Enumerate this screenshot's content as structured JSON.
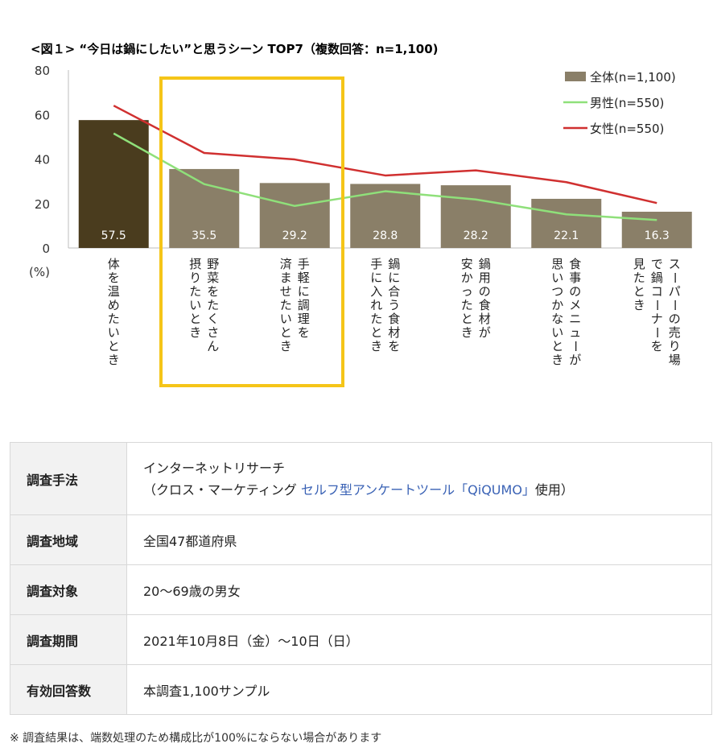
{
  "chart_data": {
    "type": "bar",
    "title": "<図１> “今日は鍋にしたい”と思うシーン TOP7（複数回答：n=1,100)",
    "unit_label": "(%)",
    "ylim": [
      0,
      80
    ],
    "yticks": [
      "0",
      "20",
      "40",
      "60",
      "80"
    ],
    "categories": [
      [
        "体を温めたいとき"
      ],
      [
        "野菜をたくさん",
        "摂りたいとき"
      ],
      [
        "手軽に調理を",
        "済ませたいとき"
      ],
      [
        "鍋に合う食材を",
        "手に入れたとき"
      ],
      [
        "鍋用の食材が",
        "安かったとき"
      ],
      [
        "食事のメニューが",
        "思いつかないとき"
      ],
      [
        "スーパーの売り場",
        "で鍋コーナーを",
        "見たとき"
      ]
    ],
    "series": [
      {
        "name": "全体(n=1,100)",
        "kind": "bar",
        "values": [
          57.5,
          35.5,
          29.2,
          28.8,
          28.2,
          22.1,
          16.3
        ],
        "color": "#8a7f68",
        "highlight_color": "#4a3c1e"
      },
      {
        "name": "男性(n=550)",
        "kind": "line",
        "values": [
          51.5,
          28.7,
          18.9,
          25.5,
          21.8,
          15.1,
          12.6
        ],
        "color": "#8fe07a"
      },
      {
        "name": "女性(n=550)",
        "kind": "line",
        "values": [
          64.0,
          42.7,
          39.8,
          32.6,
          34.9,
          29.6,
          20.2
        ],
        "color": "#d03030"
      }
    ],
    "data_labels": [
      "57.5",
      "35.5",
      "29.2",
      "28.8",
      "28.2",
      "22.1",
      "16.3"
    ],
    "highlight_box_color": "#f5c518",
    "legend_position": "top-right",
    "grid": false
  },
  "table": {
    "rows": [
      {
        "key": "調査手法",
        "line1": "インターネットリサーチ",
        "line2_prefix": "（クロス・マーケティング ",
        "line2_link": "セルフ型アンケートツール「QiQUMO」",
        "line2_suffix": "使用）"
      },
      {
        "key": "調査地域",
        "value": "全国47都道府県"
      },
      {
        "key": "調査対象",
        "value": "20〜69歳の男女"
      },
      {
        "key": "調査期間",
        "value": "2021年10月8日（金）〜10日（日）"
      },
      {
        "key": "有効回答数",
        "value": "本調査1,100サンプル"
      }
    ]
  },
  "footnote": "※ 調査結果は、端数処理のため構成比が100%にならない場合があります"
}
